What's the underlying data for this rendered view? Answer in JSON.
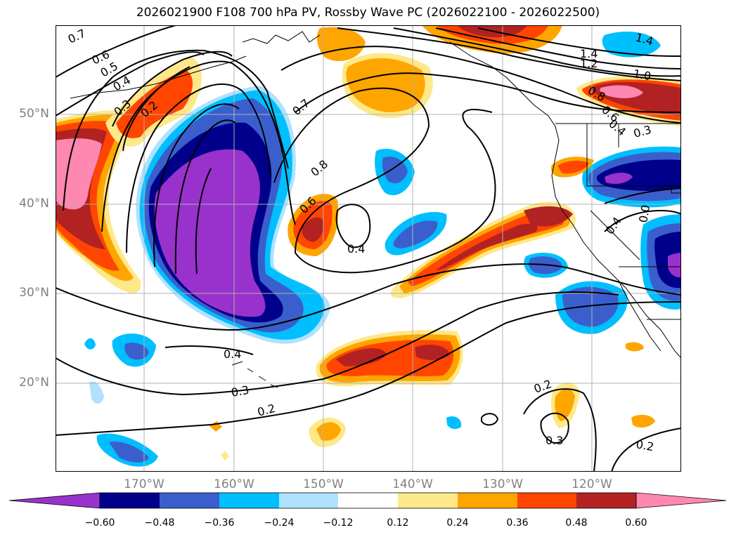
{
  "title": "2026021900 F108 700 hPa PV, Rossby Wave PC (2026022100 - 2026022500)",
  "colors": {
    "neg_060": "#9932CC",
    "neg_048": "#00008B",
    "neg_036": "#3A5FCD",
    "neg_024": "#00BFFF",
    "neg_012": "#B0E2FF",
    "zero": "#FFFFFF",
    "pos_012": "#FFE88A",
    "pos_024": "#FFA500",
    "pos_036": "#FF4500",
    "pos_048": "#B22222",
    "pos_060": "#FF88B0",
    "grid": "#B0B0B0",
    "coast": "#000000"
  },
  "lat_labels": [
    "50°N",
    "40°N",
    "30°N",
    "20°N"
  ],
  "lon_labels": [
    "170°W",
    "160°W",
    "150°W",
    "140°W",
    "130°W",
    "120°W"
  ],
  "colorbar": {
    "ticks": [
      "−0.60",
      "−0.48",
      "−0.36",
      "−0.24",
      "−0.12",
      "0.12",
      "0.24",
      "0.36",
      "0.48",
      "0.60"
    ]
  },
  "contour_labels": [
    "0.7",
    "0.6",
    "0.5",
    "0.4",
    "0.3",
    "0.2",
    "0.7",
    "0.8",
    "0.6",
    "0.4",
    "1.4",
    "1.4",
    "1.2",
    "1.0",
    "0.8",
    "0.6",
    "0.4",
    "0.3",
    "0.4",
    "0.0",
    "0.4",
    "0.3",
    "0.2",
    "0.2",
    "0.3",
    "0.2"
  ]
}
